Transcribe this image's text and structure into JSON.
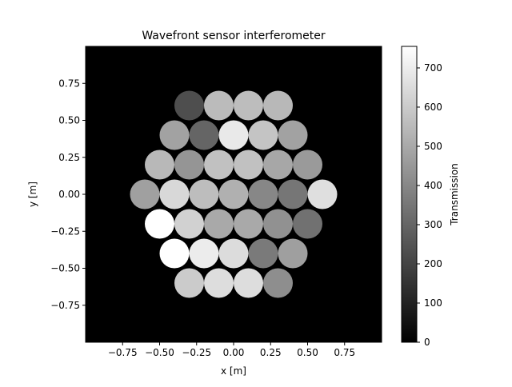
{
  "chart_data": {
    "type": "heatmap",
    "title": "Wavefront sensor interferometer",
    "xlabel": "x [m]",
    "ylabel": "y [m]",
    "xlim": [
      -1.0,
      1.0
    ],
    "ylim": [
      -1.0,
      1.0
    ],
    "x_ticks": [
      -0.75,
      -0.5,
      -0.25,
      0.0,
      0.25,
      0.5,
      0.75
    ],
    "y_ticks": [
      -0.75,
      -0.5,
      -0.25,
      0.0,
      0.25,
      0.5,
      0.75
    ],
    "x_tick_labels": [
      "−0.75",
      "−0.50",
      "−0.25",
      "0.00",
      "0.25",
      "0.50",
      "0.75"
    ],
    "y_tick_labels": [
      "−0.75",
      "−0.50",
      "−0.25",
      "0.00",
      "0.25",
      "0.50",
      "0.75"
    ],
    "background_value": 0,
    "segment_radius": 0.1,
    "colormap": "gray",
    "colorbar": {
      "label": "Transmission",
      "range": [
        0,
        755
      ],
      "ticks": [
        0,
        100,
        200,
        300,
        400,
        500,
        600,
        700
      ],
      "tick_labels": [
        "0",
        "100",
        "200",
        "300",
        "400",
        "500",
        "600",
        "700"
      ]
    },
    "segments": [
      {
        "x": -0.3,
        "y": 0.6,
        "value": 230
      },
      {
        "x": -0.1,
        "y": 0.6,
        "value": 555
      },
      {
        "x": 0.1,
        "y": 0.6,
        "value": 560
      },
      {
        "x": 0.3,
        "y": 0.6,
        "value": 545
      },
      {
        "x": -0.4,
        "y": 0.4,
        "value": 480
      },
      {
        "x": -0.2,
        "y": 0.4,
        "value": 300
      },
      {
        "x": 0.0,
        "y": 0.4,
        "value": 690
      },
      {
        "x": 0.2,
        "y": 0.4,
        "value": 580
      },
      {
        "x": 0.4,
        "y": 0.4,
        "value": 480
      },
      {
        "x": -0.5,
        "y": 0.2,
        "value": 545
      },
      {
        "x": -0.3,
        "y": 0.2,
        "value": 440
      },
      {
        "x": -0.1,
        "y": 0.2,
        "value": 570
      },
      {
        "x": 0.1,
        "y": 0.2,
        "value": 570
      },
      {
        "x": 0.3,
        "y": 0.2,
        "value": 495
      },
      {
        "x": 0.5,
        "y": 0.2,
        "value": 455
      },
      {
        "x": -0.6,
        "y": 0.0,
        "value": 475
      },
      {
        "x": -0.4,
        "y": 0.0,
        "value": 640
      },
      {
        "x": -0.2,
        "y": 0.0,
        "value": 560
      },
      {
        "x": 0.0,
        "y": 0.0,
        "value": 520
      },
      {
        "x": 0.2,
        "y": 0.0,
        "value": 400
      },
      {
        "x": 0.4,
        "y": 0.0,
        "value": 350
      },
      {
        "x": 0.6,
        "y": 0.0,
        "value": 660
      },
      {
        "x": -0.5,
        "y": -0.2,
        "value": 755
      },
      {
        "x": -0.3,
        "y": -0.2,
        "value": 620
      },
      {
        "x": -0.1,
        "y": -0.2,
        "value": 500
      },
      {
        "x": 0.1,
        "y": -0.2,
        "value": 500
      },
      {
        "x": 0.3,
        "y": -0.2,
        "value": 430
      },
      {
        "x": 0.5,
        "y": -0.2,
        "value": 335
      },
      {
        "x": -0.4,
        "y": -0.4,
        "value": 755
      },
      {
        "x": -0.2,
        "y": -0.4,
        "value": 700
      },
      {
        "x": 0.0,
        "y": -0.4,
        "value": 650
      },
      {
        "x": 0.2,
        "y": -0.4,
        "value": 360
      },
      {
        "x": 0.4,
        "y": -0.4,
        "value": 470
      },
      {
        "x": -0.3,
        "y": -0.6,
        "value": 600
      },
      {
        "x": -0.1,
        "y": -0.6,
        "value": 655
      },
      {
        "x": 0.1,
        "y": -0.6,
        "value": 655
      },
      {
        "x": 0.3,
        "y": -0.6,
        "value": 420
      }
    ]
  }
}
